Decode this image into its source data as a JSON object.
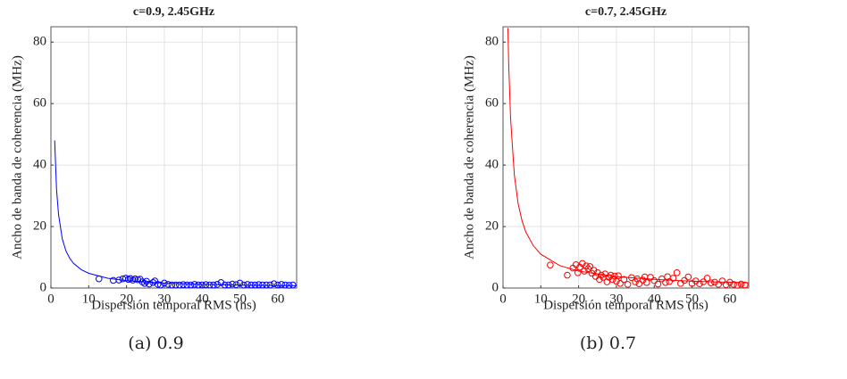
{
  "chart_data": [
    {
      "type": "scatter",
      "title": "c=0.9, 2.45GHz",
      "xlabel": "Dispersión temporal RMS (ns)",
      "ylabel": "Ancho de banda de coherencia (MHz)",
      "caption": "(a) 0.9",
      "xlim": [
        0,
        65
      ],
      "ylim": [
        0,
        85
      ],
      "xticks": [
        0,
        10,
        20,
        30,
        40,
        50,
        60
      ],
      "yticks": [
        0,
        20,
        40,
        60,
        80
      ],
      "grid": true,
      "series": [
        {
          "mode": "line",
          "color": "#0000ff",
          "x": [
            1,
            1.5,
            2,
            3,
            4,
            5,
            6,
            8,
            10,
            15,
            20,
            30,
            40,
            50,
            65
          ],
          "values": [
            48,
            32,
            24,
            16,
            12,
            9.6,
            8,
            6,
            4.8,
            3.2,
            2.4,
            1.6,
            1.2,
            0.96,
            0.74
          ]
        },
        {
          "mode": "markers",
          "color": "#0000ff",
          "x": [
            12.7,
            16.5,
            18,
            19,
            19.8,
            20.5,
            21,
            21.7,
            22.3,
            23,
            23.6,
            24.2,
            24.8,
            25.3,
            26,
            27,
            27.5,
            28.3,
            29,
            30,
            31,
            32,
            33,
            34,
            35,
            36,
            37,
            38,
            39,
            40,
            41,
            42,
            43,
            44,
            45,
            46,
            47,
            48,
            49,
            50,
            51,
            52,
            53,
            54,
            55,
            56,
            57,
            58,
            59,
            60,
            61,
            62,
            63,
            64
          ],
          "values": [
            3,
            2.5,
            2.6,
            3,
            3.2,
            2.8,
            3.1,
            2.6,
            3,
            2.7,
            2.9,
            2,
            1.5,
            2.2,
            1.3,
            1.8,
            2.3,
            1.2,
            1,
            1.6,
            1.2,
            1,
            1,
            1,
            1.1,
            1,
            1,
            1.2,
            1,
            1,
            1.1,
            1,
            1,
            1.2,
            1.8,
            1,
            1,
            1.3,
            1.1,
            1.6,
            1,
            1.2,
            1,
            1,
            1.1,
            1,
            1,
            1,
            1.4,
            1,
            1.2,
            1,
            0.9,
            1
          ]
        }
      ]
    },
    {
      "type": "scatter",
      "title": "c=0.7, 2.45GHz",
      "xlabel": "Dispersión temporal RMS (ns)",
      "ylabel": "Ancho de banda de coherencia (MHz)",
      "caption": "(b) 0.7",
      "xlim": [
        0,
        65
      ],
      "ylim": [
        0,
        85
      ],
      "xticks": [
        0,
        10,
        20,
        30,
        40,
        50,
        60
      ],
      "yticks": [
        0,
        20,
        40,
        60,
        80
      ],
      "grid": true,
      "series": [
        {
          "mode": "line",
          "color": "#ff0000",
          "x": [
            1.3,
            1.5,
            2,
            3,
            4,
            5,
            6,
            8,
            10,
            15,
            20,
            30,
            40,
            50,
            65
          ],
          "values": [
            84.6,
            73.3,
            55,
            36.7,
            27.5,
            22,
            18.3,
            13.8,
            11,
            7.3,
            5.5,
            3.7,
            2.8,
            2.2,
            1.7
          ]
        },
        {
          "mode": "markers",
          "color": "#ff0000",
          "x": [
            12.5,
            17,
            18.5,
            19.3,
            19.8,
            20.3,
            21,
            21.5,
            22,
            22.5,
            23,
            23.5,
            24,
            24.5,
            25,
            25.5,
            26,
            26.5,
            27,
            27.5,
            28,
            28.5,
            29,
            29.5,
            30,
            30.5,
            31,
            32,
            33,
            34,
            35,
            35.5,
            36,
            37,
            37.5,
            38,
            39,
            40,
            41,
            42,
            43,
            43.5,
            44,
            45,
            46,
            47,
            48,
            49,
            50,
            51,
            52,
            53,
            54,
            55,
            56,
            57,
            58,
            59,
            60,
            61,
            62,
            63,
            64
          ],
          "values": [
            7.5,
            4.2,
            6.5,
            7.6,
            5,
            6.8,
            8,
            5.5,
            7.2,
            6.3,
            7,
            4.8,
            5.8,
            3.8,
            5,
            2.8,
            4.2,
            3.5,
            4.6,
            2,
            3.5,
            4.2,
            2.8,
            3.9,
            2.2,
            4,
            1.5,
            2.8,
            1.2,
            3.4,
            2,
            3,
            1.4,
            2.6,
            3.6,
            1.8,
            3.5,
            2.4,
            1.3,
            3,
            1.8,
            3.7,
            2.1,
            3.2,
            5,
            1.5,
            2.5,
            3.6,
            1.5,
            2.3,
            1.4,
            2,
            3.2,
            1.7,
            1.9,
            1.2,
            2.3,
            1.1,
            1.9,
            1.2,
            0.9,
            1.3,
            1
          ]
        }
      ]
    }
  ]
}
